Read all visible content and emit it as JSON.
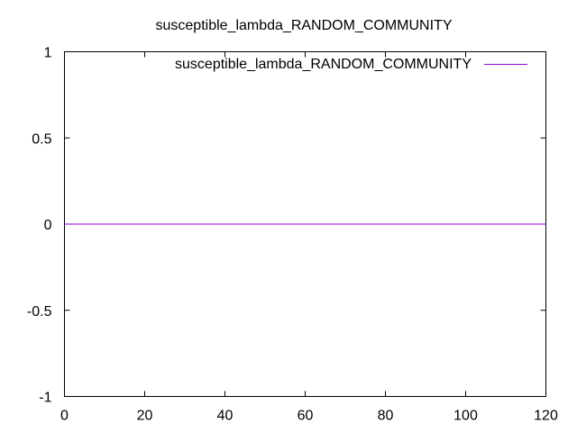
{
  "chart_data": {
    "type": "line",
    "title": "susceptible_lambda_RANDOM_COMMUNITY",
    "xlabel": "",
    "ylabel": "",
    "xlim": [
      0,
      120
    ],
    "ylim": [
      -1,
      1
    ],
    "x_ticks": [
      0,
      20,
      40,
      60,
      80,
      100,
      120
    ],
    "x_tick_labels": [
      "0",
      "20",
      "40",
      "60",
      "80",
      "100",
      "120"
    ],
    "y_ticks": [
      -1,
      -0.5,
      0,
      0.5,
      1
    ],
    "y_tick_labels": [
      "-1",
      "-0.5",
      "0",
      "0.5",
      "1"
    ],
    "grid": false,
    "legend_position": "top-right",
    "series": [
      {
        "name": "susceptible_lambda_RANDOM_COMMUNITY",
        "color": "#9400d3",
        "x": [
          0,
          120
        ],
        "y": [
          0,
          0
        ]
      }
    ]
  }
}
